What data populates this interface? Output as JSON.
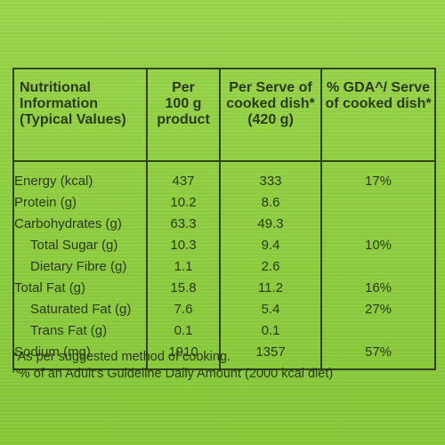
{
  "table": {
    "headers": [
      [
        "Nutritional",
        "Information",
        "(Typical Values)"
      ],
      [
        "Per",
        "100 g",
        "product"
      ],
      [
        "Per Serve of",
        "cooked dish*",
        "(420 g)"
      ],
      [
        "% GDA^/ Serve",
        "of cooked dish*"
      ]
    ],
    "rows": [
      {
        "label": "Energy (kcal)",
        "per100": "437",
        "serve": "333",
        "gda": "17%",
        "indent": false
      },
      {
        "label": "Protein (g)",
        "per100": "10.2",
        "serve": "8.6",
        "gda": "",
        "indent": false
      },
      {
        "label": "Carbohydrates (g)",
        "per100": "63.3",
        "serve": "49.3",
        "gda": "",
        "indent": false
      },
      {
        "label": "Total Sugar (g)",
        "per100": "10.3",
        "serve": "9.4",
        "gda": "10%",
        "indent": true
      },
      {
        "label": "Dietary Fibre (g)",
        "per100": "1.1",
        "serve": "2.6",
        "gda": "",
        "indent": true
      },
      {
        "label": "Total Fat (g)",
        "per100": "15.8",
        "serve": "11.2",
        "gda": "16%",
        "indent": false
      },
      {
        "label": "Saturated Fat (g)",
        "per100": "7.6",
        "serve": "5.4",
        "gda": "27%",
        "indent": true
      },
      {
        "label": "Trans Fat (g)",
        "per100": "0.1",
        "serve": "0.1",
        "gda": "",
        "indent": true
      },
      {
        "label": "Sodium (mg)",
        "per100": "1910",
        "serve": "1357",
        "gda": "57%",
        "indent": false
      }
    ]
  },
  "footnotes": {
    "note1": "*As per suggested method of cooking.",
    "note2": "^% of an Adult's Guideline Daily Amount (2000 kcal diet)"
  }
}
